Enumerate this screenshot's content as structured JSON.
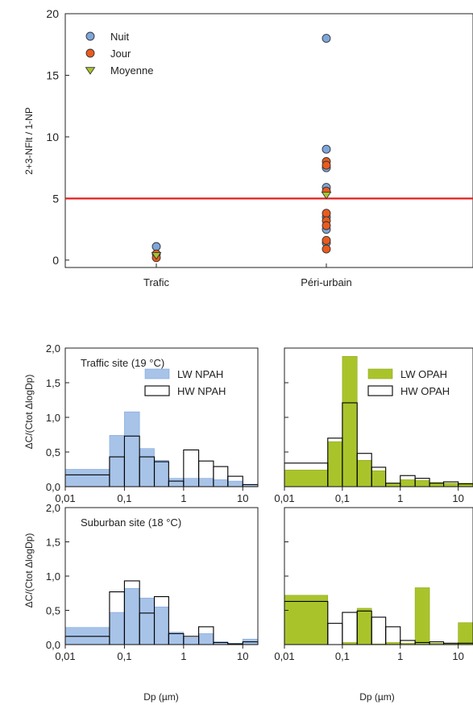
{
  "chart_data": [
    {
      "type": "scatter",
      "ylabel": "2+3-NFlt / 1-NP",
      "ylim": [
        0,
        20
      ],
      "yticks": [
        "0",
        "5",
        "10",
        "15",
        "20"
      ],
      "categories": [
        "Trafic",
        "Péri-urbain"
      ],
      "reference_line": 5,
      "reference_color": "#e01f1f",
      "series": [
        {
          "name": "Nuit",
          "color": "#7ea6dc",
          "marker": "circle",
          "points": [
            {
              "x": "Trafic",
              "y": 1.1
            },
            {
              "x": "Péri-urbain",
              "y": 18.0
            },
            {
              "x": "Péri-urbain",
              "y": 9.0
            },
            {
              "x": "Péri-urbain",
              "y": 7.5
            },
            {
              "x": "Péri-urbain",
              "y": 5.9
            },
            {
              "x": "Péri-urbain",
              "y": 3.5
            },
            {
              "x": "Péri-urbain",
              "y": 2.5
            },
            {
              "x": "Péri-urbain",
              "y": 1.4
            }
          ]
        },
        {
          "name": "Jour",
          "color": "#ea5b1d",
          "marker": "circle",
          "points": [
            {
              "x": "Trafic",
              "y": 0.5
            },
            {
              "x": "Trafic",
              "y": 0.2
            },
            {
              "x": "Péri-urbain",
              "y": 8.0
            },
            {
              "x": "Péri-urbain",
              "y": 7.7
            },
            {
              "x": "Péri-urbain",
              "y": 5.6
            },
            {
              "x": "Péri-urbain",
              "y": 3.8
            },
            {
              "x": "Péri-urbain",
              "y": 3.2
            },
            {
              "x": "Péri-urbain",
              "y": 2.8
            },
            {
              "x": "Péri-urbain",
              "y": 1.6
            },
            {
              "x": "Péri-urbain",
              "y": 0.9
            }
          ]
        },
        {
          "name": "Moyenne",
          "color": "#a9c42b",
          "marker": "triangle-down",
          "points": [
            {
              "x": "Trafic",
              "y": 0.4
            },
            {
              "x": "Péri-urbain",
              "y": 5.3
            }
          ]
        }
      ]
    },
    {
      "type": "bar",
      "panel": "traffic-npah",
      "annotation": "Traffic site (19 °C)",
      "ylabel": "ΔC/(Ctot ΔlogDp)",
      "ylim": [
        0,
        2.0
      ],
      "yticks": [
        "0,0",
        "0,5",
        "1,0",
        "1,5",
        "2,0"
      ],
      "xscale": "log",
      "xlim": [
        0.01,
        18
      ],
      "xticks": [
        "0,01",
        "0,1",
        "1",
        "10"
      ],
      "bin_edges": [
        0.01,
        0.056,
        0.1,
        0.18,
        0.32,
        0.56,
        1.0,
        1.8,
        3.2,
        5.6,
        10,
        18
      ],
      "legend_position": "top-right",
      "series": [
        {
          "name": "LW NPAH",
          "style": "filled",
          "color": "#a7c3e8",
          "edge": "#7ea6dc",
          "values": [
            0.25,
            0.74,
            1.08,
            0.55,
            0.38,
            0.12,
            0.12,
            0.12,
            0.1,
            0.08,
            0.03
          ]
        },
        {
          "name": "HW NPAH",
          "style": "outline",
          "color": "#000000",
          "values": [
            0.17,
            0.43,
            0.73,
            0.43,
            0.36,
            0.08,
            0.53,
            0.37,
            0.29,
            0.15,
            0.03
          ]
        }
      ]
    },
    {
      "type": "bar",
      "panel": "traffic-opah",
      "xscale": "log",
      "xlim": [
        0.01,
        18
      ],
      "xticks": [
        "0,01",
        "0,1",
        "1",
        "10"
      ],
      "ylim": [
        0,
        2.0
      ],
      "bin_edges": [
        0.01,
        0.056,
        0.1,
        0.18,
        0.32,
        0.56,
        1.0,
        1.8,
        3.2,
        5.6,
        10,
        18
      ],
      "legend_position": "top-right",
      "series": [
        {
          "name": "LW OPAH",
          "style": "filled",
          "color": "#a9c42b",
          "edge": "#8ea81e",
          "values": [
            0.24,
            0.65,
            1.88,
            0.38,
            0.23,
            0.05,
            0.1,
            0.09,
            0.06,
            0.05,
            0.05
          ]
        },
        {
          "name": "HW OPAH",
          "style": "outline",
          "color": "#000000",
          "values": [
            0.34,
            0.7,
            1.21,
            0.48,
            0.28,
            0.05,
            0.16,
            0.12,
            0.05,
            0.07,
            0.04
          ]
        }
      ]
    },
    {
      "type": "bar",
      "panel": "suburban-npah",
      "annotation": "Suburban site (18 °C)",
      "ylabel": "ΔC/(Ctot ΔlogDp)",
      "xlabel": "Dp (µm)",
      "ylim": [
        0,
        2.0
      ],
      "yticks": [
        "0,0",
        "0,5",
        "1,0",
        "1,5",
        "2,0"
      ],
      "xscale": "log",
      "xlim": [
        0.01,
        18
      ],
      "xticks": [
        "0,01",
        "0,1",
        "1",
        "10"
      ],
      "bin_edges": [
        0.01,
        0.056,
        0.1,
        0.18,
        0.32,
        0.56,
        1.0,
        1.8,
        3.2,
        5.6,
        10,
        18
      ],
      "series": [
        {
          "name": "LW NPAH",
          "style": "filled",
          "color": "#a7c3e8",
          "edge": "#7ea6dc",
          "values": [
            0.25,
            0.47,
            0.82,
            0.68,
            0.55,
            0.18,
            0.1,
            0.16,
            0.04,
            0.02,
            0.08
          ]
        },
        {
          "name": "HW NPAH",
          "style": "outline",
          "color": "#000000",
          "values": [
            0.12,
            0.77,
            0.93,
            0.46,
            0.7,
            0.16,
            0.12,
            0.26,
            0.03,
            0.01,
            0.04
          ]
        }
      ]
    },
    {
      "type": "bar",
      "panel": "suburban-opah",
      "xlabel": "Dp (µm)",
      "xscale": "log",
      "xlim": [
        0.01,
        18
      ],
      "xticks": [
        "0,01",
        "0,1",
        "1",
        "10"
      ],
      "ylim": [
        0,
        2.0
      ],
      "bin_edges": [
        0.01,
        0.056,
        0.1,
        0.18,
        0.32,
        0.56,
        1.0,
        1.8,
        3.2,
        5.6,
        10,
        18
      ],
      "series": [
        {
          "name": "LW OPAH",
          "style": "filled",
          "color": "#a9c42b",
          "edge": "#8ea81e",
          "values": [
            0.72,
            0.0,
            0.03,
            0.53,
            0.01,
            0.03,
            0.02,
            0.83,
            0.02,
            0.01,
            0.32
          ]
        },
        {
          "name": "HW OPAH",
          "style": "outline",
          "color": "#000000",
          "values": [
            0.63,
            0.31,
            0.47,
            0.49,
            0.4,
            0.26,
            0.06,
            0.03,
            0.04,
            0.02,
            0.02
          ]
        }
      ]
    }
  ]
}
